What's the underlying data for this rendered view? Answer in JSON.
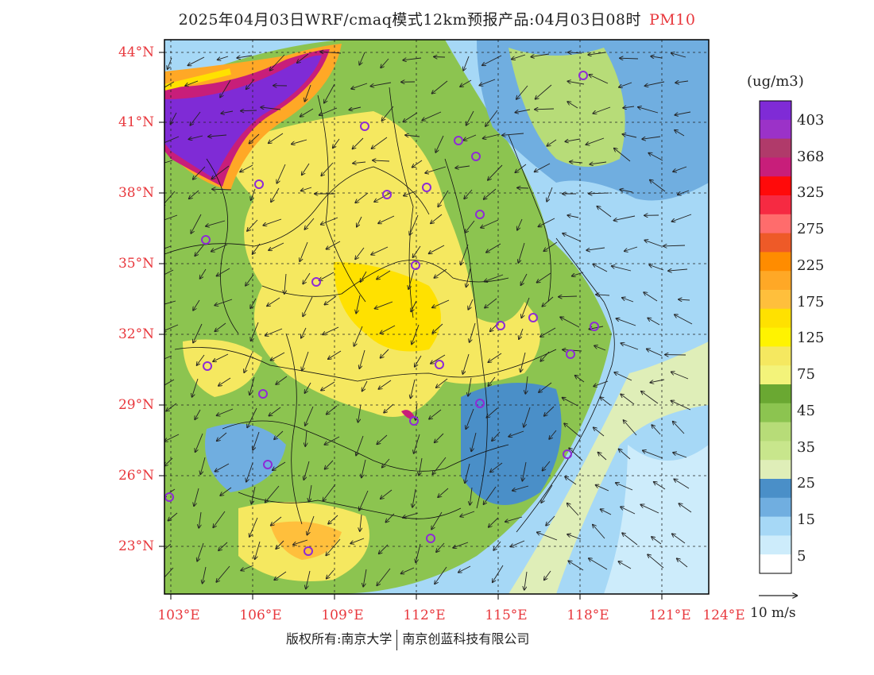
{
  "title": {
    "main": "2025年04月03日WRF/cmaq模式12km预报产品:04月03日08时",
    "variable": "PM10"
  },
  "map": {
    "lat_labels": [
      "44°N",
      "41°N",
      "38°N",
      "35°N",
      "32°N",
      "29°N",
      "26°N",
      "23°N"
    ],
    "lon_labels": [
      "103°E",
      "106°E",
      "109°E",
      "112°E",
      "115°E",
      "118°E",
      "121°E",
      "124°E"
    ]
  },
  "colorbar": {
    "unit": "(ug/m3)",
    "labels": [
      "403",
      "368",
      "325",
      "275",
      "225",
      "175",
      "125",
      "75",
      "45",
      "35",
      "25",
      "15",
      "5"
    ],
    "colors": [
      "#7f2bd6",
      "#9b32c8",
      "#b03a6a",
      "#c81e7a",
      "#ff0a0a",
      "#f62a42",
      "#ff6c6c",
      "#ee5a28",
      "#ff8c00",
      "#ffa826",
      "#ffbf3c",
      "#ffe100",
      "#fff300",
      "#f5e860",
      "#f3f37a",
      "#6aa832",
      "#8cc450",
      "#b7dc78",
      "#c8e68c",
      "#dfeeb8",
      "#4a8fc8",
      "#70aee0",
      "#a6d8f6",
      "#cdecfb",
      "#ffffff"
    ]
  },
  "wind_reference": {
    "label": "10 m/s"
  },
  "footer": {
    "left": "版权所有:南京大学",
    "right": "南京创蓝科技有限公司"
  }
}
